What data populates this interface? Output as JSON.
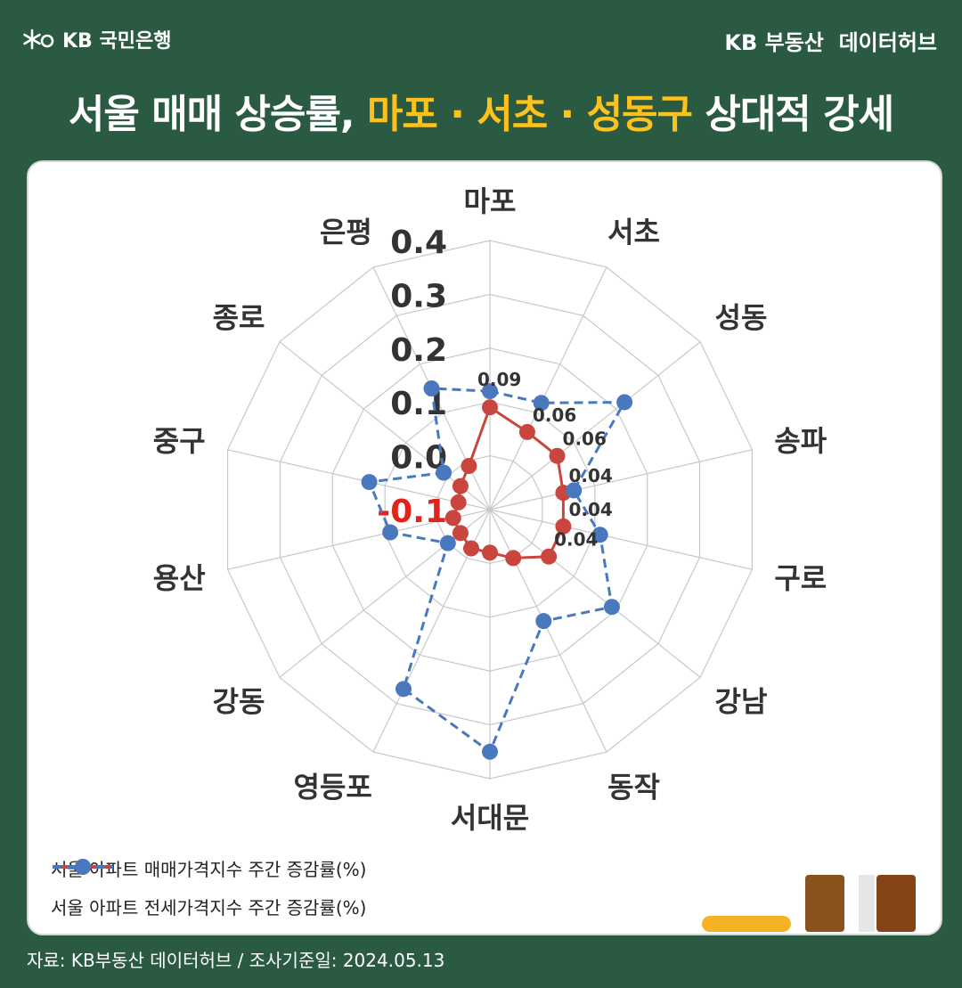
{
  "brand": {
    "name": "KB 국민은행"
  },
  "header": {
    "right": "KB 부동산  데이터허브"
  },
  "headline": {
    "part1": "서울 매매 상승률, ",
    "part2": "마포 · 서초 · 성동구",
    "part3": " 상대적 강세"
  },
  "colors": {
    "background": "#2b5a43",
    "highlight": "#ffc21a",
    "sale_series": "#c9463e",
    "jeonse_series": "#4a78bf",
    "negative_tick": "#e3221b"
  },
  "chart_data": {
    "type": "radar",
    "categories": [
      "마포",
      "서초",
      "성동",
      "송파",
      "구로",
      "강남",
      "동작",
      "서대문",
      "영등포",
      "강동",
      "용산",
      "중구",
      "종로",
      "은평"
    ],
    "radial_ticks": [
      "0.4",
      "0.3",
      "0.2",
      "0.1",
      "0.0",
      "-0.1"
    ],
    "range": [
      -0.1,
      0.4
    ],
    "grid": true,
    "series": [
      {
        "name": "서울 아파트 매매가격지수 주간 증감률(%)",
        "color": "#c9463e",
        "dash": false,
        "values": [
          0.09,
          0.06,
          0.06,
          0.04,
          0.04,
          0.04,
          0.0,
          -0.02,
          -0.02,
          -0.03,
          -0.03,
          -0.04,
          -0.03,
          -0.01
        ]
      },
      {
        "name": "서울 아파트 전세가격지수 주간 증감률(%)",
        "color": "#4a78bf",
        "dash": true,
        "values": [
          0.12,
          0.12,
          0.22,
          0.06,
          0.11,
          0.19,
          0.13,
          0.35,
          0.27,
          0.0,
          0.09,
          0.13,
          0.01,
          0.15
        ]
      }
    ],
    "data_labels": [
      {
        "category": "마포",
        "text": "0.09"
      },
      {
        "category": "서초",
        "text": "0.06"
      },
      {
        "category": "성동",
        "text": "0.06"
      },
      {
        "category": "송파",
        "text": "0.04"
      },
      {
        "category": "구로",
        "text": "0.04"
      },
      {
        "category": "강남",
        "text": "0.04"
      }
    ],
    "legend_position": "bottom-left"
  },
  "source": "자료: KB부동산 데이터허브 / 조사기준일: 2024.05.13"
}
